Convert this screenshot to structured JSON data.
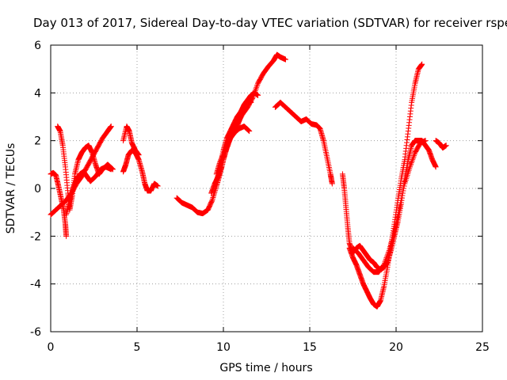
{
  "chart_data": {
    "type": "scatter",
    "title": "Day 013 of 2017, Sidereal Day-to-day VTEC variation (SDTVAR) for receiver rspe",
    "xlabel": "GPS time / hours",
    "ylabel": "SDTVAR / TECUs",
    "xlim": [
      0,
      25
    ],
    "ylim": [
      -6,
      6
    ],
    "x_ticks": [
      0,
      5,
      10,
      15,
      20,
      25
    ],
    "y_ticks": [
      -6,
      -4,
      -2,
      0,
      2,
      4,
      6
    ],
    "x_tick_labels": [
      "0",
      "5",
      "10",
      "15",
      "20",
      "25"
    ],
    "y_tick_labels": [
      "-6",
      "-4",
      "-2",
      "0",
      "2",
      "4",
      "6"
    ],
    "grid": true,
    "marker": "+",
    "color": "#ff0000",
    "series": [
      {
        "values": [
          [
            0.0,
            0.6
          ],
          [
            0.15,
            0.65
          ],
          [
            0.3,
            0.55
          ],
          [
            0.45,
            0.1
          ],
          [
            0.6,
            -0.4
          ],
          [
            0.75,
            -0.9
          ],
          [
            0.85,
            -1.5
          ],
          [
            0.9,
            -2.0
          ]
        ]
      },
      {
        "values": [
          [
            0.0,
            -1.1
          ],
          [
            0.3,
            -0.9
          ],
          [
            0.6,
            -0.7
          ],
          [
            0.9,
            -0.5
          ],
          [
            1.2,
            -0.2
          ],
          [
            1.5,
            0.2
          ],
          [
            1.8,
            0.5
          ],
          [
            2.1,
            0.9
          ],
          [
            2.4,
            1.3
          ],
          [
            2.7,
            1.7
          ],
          [
            3.0,
            2.1
          ],
          [
            3.3,
            2.4
          ],
          [
            3.5,
            2.6
          ]
        ]
      },
      {
        "values": [
          [
            0.4,
            2.6
          ],
          [
            0.55,
            2.4
          ],
          [
            0.7,
            1.8
          ],
          [
            0.85,
            0.9
          ],
          [
            1.0,
            -0.2
          ],
          [
            1.1,
            -0.9
          ],
          [
            1.25,
            -0.3
          ],
          [
            1.4,
            0.6
          ],
          [
            1.6,
            1.2
          ],
          [
            1.8,
            1.5
          ],
          [
            2.0,
            1.7
          ],
          [
            2.2,
            1.8
          ],
          [
            2.4,
            1.5
          ],
          [
            2.6,
            1.0
          ],
          [
            2.8,
            0.6
          ],
          [
            3.0,
            0.8
          ],
          [
            3.3,
            1.0
          ],
          [
            3.6,
            0.8
          ]
        ]
      },
      {
        "values": [
          [
            0.9,
            -1.1
          ],
          [
            1.1,
            -0.5
          ],
          [
            1.3,
            0.0
          ],
          [
            1.5,
            0.4
          ],
          [
            1.7,
            0.6
          ],
          [
            1.9,
            0.7
          ],
          [
            2.1,
            0.5
          ],
          [
            2.3,
            0.3
          ],
          [
            2.6,
            0.5
          ],
          [
            2.9,
            0.8
          ],
          [
            3.2,
            0.9
          ],
          [
            3.5,
            0.8
          ]
        ]
      },
      {
        "values": [
          [
            4.2,
            0.7
          ],
          [
            4.35,
            1.0
          ],
          [
            4.5,
            1.4
          ],
          [
            4.7,
            1.6
          ],
          [
            4.9,
            1.5
          ],
          [
            5.1,
            1.2
          ],
          [
            5.3,
            0.7
          ],
          [
            5.45,
            0.2
          ],
          [
            5.6,
            -0.1
          ],
          [
            5.8,
            -0.1
          ],
          [
            6.0,
            0.2
          ],
          [
            6.2,
            0.1
          ]
        ]
      },
      {
        "values": [
          [
            4.2,
            2.0
          ],
          [
            4.4,
            2.6
          ],
          [
            4.55,
            2.4
          ],
          [
            4.7,
            1.9
          ],
          [
            4.9,
            1.6
          ],
          [
            5.1,
            1.4
          ]
        ]
      },
      {
        "values": [
          [
            7.3,
            -0.4
          ],
          [
            7.6,
            -0.6
          ],
          [
            7.9,
            -0.7
          ],
          [
            8.2,
            -0.8
          ],
          [
            8.5,
            -1.0
          ],
          [
            8.8,
            -1.05
          ],
          [
            9.1,
            -0.9
          ],
          [
            9.35,
            -0.5
          ],
          [
            9.6,
            0.1
          ],
          [
            9.8,
            0.6
          ],
          [
            10.0,
            1.2
          ],
          [
            10.2,
            1.7
          ],
          [
            10.4,
            2.1
          ],
          [
            10.6,
            2.3
          ],
          [
            10.8,
            2.6
          ],
          [
            11.0,
            3.0
          ],
          [
            11.2,
            3.5
          ],
          [
            11.4,
            3.7
          ],
          [
            11.6,
            3.6
          ]
        ]
      },
      {
        "values": [
          [
            9.3,
            -0.2
          ],
          [
            9.5,
            0.2
          ],
          [
            9.7,
            0.5
          ],
          [
            9.9,
            0.9
          ],
          [
            10.1,
            1.5
          ],
          [
            10.3,
            1.9
          ],
          [
            10.5,
            2.3
          ],
          [
            10.8,
            2.7
          ],
          [
            11.1,
            3.1
          ],
          [
            11.4,
            3.4
          ],
          [
            11.7,
            3.8
          ],
          [
            12.0,
            4.4
          ],
          [
            12.3,
            4.8
          ],
          [
            12.6,
            5.1
          ],
          [
            12.9,
            5.35
          ],
          [
            13.1,
            5.6
          ],
          [
            13.3,
            5.5
          ],
          [
            13.6,
            5.4
          ]
        ]
      },
      {
        "values": [
          [
            9.6,
            0.3
          ],
          [
            9.8,
            0.9
          ],
          [
            10.0,
            1.6
          ],
          [
            10.2,
            2.1
          ],
          [
            10.4,
            2.4
          ],
          [
            10.6,
            2.7
          ],
          [
            10.8,
            3.0
          ],
          [
            11.0,
            3.2
          ],
          [
            11.2,
            3.5
          ],
          [
            11.4,
            3.7
          ],
          [
            11.6,
            3.9
          ],
          [
            11.8,
            4.0
          ],
          [
            12.0,
            3.9
          ]
        ]
      },
      {
        "values": [
          [
            9.6,
            0.6
          ],
          [
            9.8,
            1.1
          ],
          [
            10.1,
            1.6
          ],
          [
            10.3,
            2.0
          ],
          [
            10.6,
            2.3
          ],
          [
            10.9,
            2.5
          ],
          [
            11.2,
            2.6
          ],
          [
            11.5,
            2.4
          ]
        ]
      },
      {
        "values": [
          [
            13.0,
            3.4
          ],
          [
            13.3,
            3.6
          ],
          [
            13.6,
            3.4
          ],
          [
            13.9,
            3.2
          ],
          [
            14.2,
            3.0
          ],
          [
            14.5,
            2.8
          ],
          [
            14.8,
            2.9
          ],
          [
            15.1,
            2.7
          ],
          [
            15.4,
            2.65
          ],
          [
            15.6,
            2.5
          ],
          [
            15.8,
            2.0
          ],
          [
            16.0,
            1.3
          ],
          [
            16.2,
            0.6
          ],
          [
            16.3,
            0.2
          ]
        ]
      },
      {
        "values": [
          [
            16.9,
            0.6
          ],
          [
            17.0,
            0.0
          ],
          [
            17.1,
            -0.8
          ],
          [
            17.2,
            -1.6
          ],
          [
            17.3,
            -2.3
          ],
          [
            17.5,
            -2.7
          ],
          [
            17.7,
            -2.5
          ],
          [
            17.9,
            -2.4
          ],
          [
            18.1,
            -2.6
          ],
          [
            18.3,
            -2.8
          ],
          [
            18.5,
            -3.0
          ],
          [
            18.7,
            -3.1
          ],
          [
            18.9,
            -3.3
          ],
          [
            19.1,
            -3.4
          ],
          [
            19.3,
            -3.3
          ],
          [
            19.5,
            -3.1
          ],
          [
            19.7,
            -2.6
          ],
          [
            19.9,
            -2.0
          ],
          [
            20.1,
            -1.4
          ],
          [
            20.3,
            -0.6
          ],
          [
            20.5,
            0.4
          ],
          [
            20.7,
            1.2
          ],
          [
            20.9,
            1.8
          ],
          [
            21.1,
            2.0
          ],
          [
            21.3,
            2.0
          ],
          [
            21.5,
            2.0
          ],
          [
            21.7,
            1.8
          ],
          [
            21.9,
            1.6
          ],
          [
            22.1,
            1.2
          ],
          [
            22.3,
            0.9
          ]
        ]
      },
      {
        "values": [
          [
            17.3,
            -2.5
          ],
          [
            17.5,
            -2.9
          ],
          [
            17.7,
            -3.2
          ],
          [
            17.9,
            -3.6
          ],
          [
            18.1,
            -4.0
          ],
          [
            18.3,
            -4.3
          ],
          [
            18.5,
            -4.6
          ],
          [
            18.7,
            -4.85
          ],
          [
            18.9,
            -4.95
          ],
          [
            19.1,
            -4.7
          ],
          [
            19.3,
            -4.1
          ],
          [
            19.5,
            -3.3
          ],
          [
            19.7,
            -2.4
          ],
          [
            19.9,
            -1.5
          ],
          [
            20.1,
            -0.5
          ],
          [
            20.3,
            0.4
          ],
          [
            20.5,
            1.2
          ],
          [
            20.7,
            2.4
          ],
          [
            20.9,
            3.6
          ],
          [
            21.1,
            4.4
          ],
          [
            21.3,
            5.0
          ],
          [
            21.5,
            5.2
          ]
        ]
      },
      {
        "values": [
          [
            17.5,
            -2.5
          ],
          [
            17.8,
            -2.7
          ],
          [
            18.1,
            -3.0
          ],
          [
            18.4,
            -3.3
          ],
          [
            18.7,
            -3.5
          ],
          [
            19.0,
            -3.5
          ],
          [
            19.3,
            -3.2
          ],
          [
            19.6,
            -2.6
          ],
          [
            19.9,
            -1.8
          ],
          [
            20.2,
            -0.8
          ],
          [
            20.5,
            0.2
          ],
          [
            20.8,
            0.9
          ],
          [
            21.1,
            1.5
          ],
          [
            21.4,
            1.9
          ],
          [
            21.7,
            2.0
          ]
        ]
      },
      {
        "values": [
          [
            22.3,
            2.0
          ],
          [
            22.5,
            1.9
          ],
          [
            22.7,
            1.7
          ],
          [
            22.9,
            1.8
          ]
        ]
      }
    ]
  }
}
